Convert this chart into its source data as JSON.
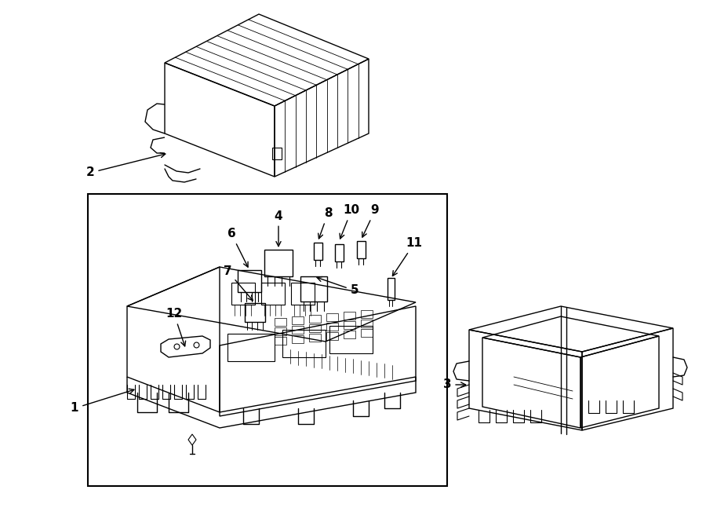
{
  "background_color": "#ffffff",
  "line_color": "#000000",
  "fig_width": 9.0,
  "fig_height": 6.61,
  "lw": 1.0
}
